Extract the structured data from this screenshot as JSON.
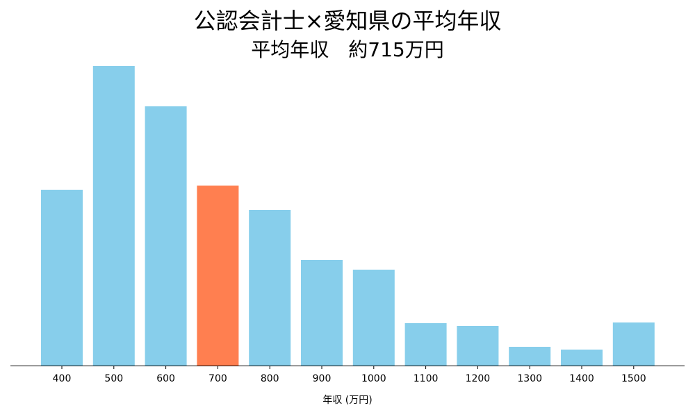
{
  "chart_data": {
    "type": "bar",
    "title": "公認会計士×愛知県の平均年収",
    "subtitle": "平均年収　約715万円",
    "x_label": "年収 (万円)",
    "categories": [
      "400",
      "500",
      "600",
      "700",
      "800",
      "900",
      "1000",
      "1100",
      "1200",
      "1300",
      "1400",
      "1500"
    ],
    "values": [
      253,
      431,
      373,
      259,
      224,
      152,
      138,
      61,
      57,
      27,
      23,
      62
    ],
    "colors": [
      "#87ceeb",
      "#87ceeb",
      "#87ceeb",
      "#ff7f50",
      "#87ceeb",
      "#87ceeb",
      "#87ceeb",
      "#87ceeb",
      "#87ceeb",
      "#87ceeb",
      "#87ceeb",
      "#87ceeb"
    ],
    "ylim": [
      0,
      453
    ]
  }
}
